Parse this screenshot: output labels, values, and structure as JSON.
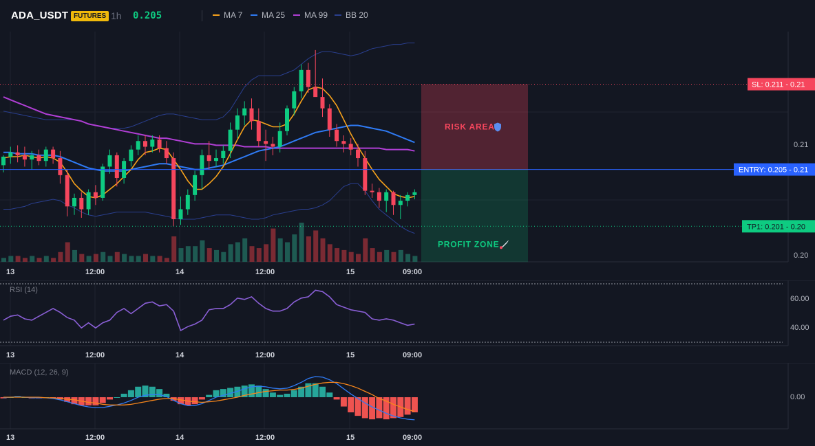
{
  "header": {
    "symbol": "ADA_USDT",
    "badge": "FUTURES",
    "timeframe": "1h",
    "price": "0.205",
    "legend": [
      {
        "label": "MA 7",
        "color": "#f7a21b"
      },
      {
        "label": "MA 25",
        "color": "#2f7bf5"
      },
      {
        "label": "MA 99",
        "color": "#b13fd6"
      },
      {
        "label": "BB 20",
        "color": "#2a3f8f"
      }
    ]
  },
  "x_labels": [
    "13",
    "12:00",
    "14",
    "12:00",
    "15",
    "09:00"
  ],
  "price_pane": {
    "y_ticks": [
      "0.21",
      "0.20"
    ],
    "sl_label": "SL: 0.211 - 0.21",
    "entry_label": "ENTRY: 0.205 - 0.21",
    "tp_label": "TP1: 0.201 - 0.20",
    "risk_label": "RISK AREA",
    "profit_label": "PROFIT ZONE",
    "colors": {
      "up": "#0ecb81",
      "down": "#f6465d",
      "sl": "#f6465d",
      "entry": "#2962ff",
      "tp": "#0ecb81"
    }
  },
  "rsi_pane": {
    "title": "RSI (14)",
    "y_ticks": [
      "60.00",
      "40.00"
    ],
    "color": "#8a5fd6"
  },
  "macd_pane": {
    "title": "MACD (12, 26, 9)",
    "y_ticks": [
      "0.00"
    ],
    "macd_color": "#2f7bf5",
    "signal_color": "#f7861b",
    "hist_pos": "#26a69a",
    "hist_neg": "#ef5350"
  },
  "chart_data": [
    {
      "type": "candlestick",
      "title": "ADA_USDT 1h",
      "y_range": [
        0.1985,
        0.2147
      ],
      "ohlc": [
        [
          0.2053,
          0.206,
          0.2048,
          0.2059
        ],
        [
          0.2059,
          0.2066,
          0.2054,
          0.2062
        ],
        [
          0.2062,
          0.2067,
          0.2055,
          0.206
        ],
        [
          0.206,
          0.2066,
          0.2052,
          0.2057
        ],
        [
          0.2057,
          0.2063,
          0.205,
          0.206
        ],
        [
          0.206,
          0.2064,
          0.2053,
          0.2056
        ],
        [
          0.2056,
          0.2066,
          0.2052,
          0.2064
        ],
        [
          0.2064,
          0.2066,
          0.2054,
          0.2058
        ],
        [
          0.2058,
          0.2063,
          0.204,
          0.2046
        ],
        [
          0.2046,
          0.205,
          0.2017,
          0.2024
        ],
        [
          0.2024,
          0.2033,
          0.2018,
          0.203
        ],
        [
          0.203,
          0.2034,
          0.2016,
          0.2022
        ],
        [
          0.2022,
          0.2036,
          0.2018,
          0.2034
        ],
        [
          0.2034,
          0.2039,
          0.2025,
          0.203
        ],
        [
          0.203,
          0.2054,
          0.2028,
          0.2052
        ],
        [
          0.2052,
          0.2064,
          0.2047,
          0.206
        ],
        [
          0.206,
          0.2062,
          0.2038,
          0.2044
        ],
        [
          0.2044,
          0.2058,
          0.204,
          0.2056
        ],
        [
          0.2056,
          0.2067,
          0.2052,
          0.2064
        ],
        [
          0.2064,
          0.2074,
          0.206,
          0.207
        ],
        [
          0.207,
          0.2074,
          0.206,
          0.2066
        ],
        [
          0.2066,
          0.2074,
          0.2062,
          0.2071
        ],
        [
          0.2071,
          0.2074,
          0.2062,
          0.2065
        ],
        [
          0.2065,
          0.207,
          0.2054,
          0.2058
        ],
        [
          0.2058,
          0.2062,
          0.201,
          0.2015
        ],
        [
          0.2015,
          0.2031,
          0.2011,
          0.2022
        ],
        [
          0.2022,
          0.2036,
          0.2018,
          0.2032
        ],
        [
          0.2032,
          0.2049,
          0.2028,
          0.2046
        ],
        [
          0.2046,
          0.2064,
          0.2036,
          0.206
        ],
        [
          0.206,
          0.207,
          0.205,
          0.2056
        ],
        [
          0.2056,
          0.2064,
          0.2052,
          0.2058
        ],
        [
          0.2058,
          0.2067,
          0.2054,
          0.2063
        ],
        [
          0.2063,
          0.2083,
          0.2058,
          0.2078
        ],
        [
          0.2078,
          0.2093,
          0.2072,
          0.2088
        ],
        [
          0.2088,
          0.2098,
          0.2081,
          0.2093
        ],
        [
          0.2093,
          0.21,
          0.2078,
          0.2084
        ],
        [
          0.2084,
          0.2093,
          0.2066,
          0.207
        ],
        [
          0.207,
          0.2078,
          0.2056,
          0.2068
        ],
        [
          0.2068,
          0.2073,
          0.206,
          0.2066
        ],
        [
          0.2066,
          0.2083,
          0.2062,
          0.2077
        ],
        [
          0.2077,
          0.2095,
          0.2074,
          0.2093
        ],
        [
          0.2093,
          0.2108,
          0.2088,
          0.2105
        ],
        [
          0.2105,
          0.2124,
          0.21,
          0.212
        ],
        [
          0.212,
          0.2125,
          0.2104,
          0.2108
        ],
        [
          0.2108,
          0.2134,
          0.2102,
          0.2101
        ],
        [
          0.2101,
          0.2114,
          0.2087,
          0.2093
        ],
        [
          0.2093,
          0.2096,
          0.2073,
          0.2078
        ],
        [
          0.2078,
          0.2082,
          0.2066,
          0.207
        ],
        [
          0.207,
          0.2074,
          0.2062,
          0.2068
        ],
        [
          0.2068,
          0.2072,
          0.206,
          0.2064
        ],
        [
          0.2064,
          0.2068,
          0.2052,
          0.2058
        ],
        [
          0.2058,
          0.2063,
          0.2032,
          0.2035
        ],
        [
          0.2035,
          0.204,
          0.203,
          0.2034
        ],
        [
          0.2034,
          0.2037,
          0.2023,
          0.2028
        ],
        [
          0.2028,
          0.2036,
          0.202,
          0.2034
        ],
        [
          0.2034,
          0.2035,
          0.2018,
          0.2025
        ],
        [
          0.2025,
          0.2032,
          0.2015,
          0.2028
        ],
        [
          0.2028,
          0.2034,
          0.2024,
          0.2032
        ],
        [
          0.2032,
          0.2036,
          0.2029,
          0.2034
        ]
      ],
      "volume": [
        2,
        3,
        3,
        2,
        3,
        2,
        3,
        2,
        5,
        10,
        6,
        4,
        3,
        4,
        5,
        3,
        5,
        4,
        3,
        3,
        4,
        3,
        3,
        2,
        13,
        7,
        8,
        8,
        11,
        7,
        6,
        5,
        9,
        10,
        12,
        8,
        7,
        9,
        17,
        12,
        10,
        14,
        20,
        13,
        16,
        12,
        9,
        7,
        6,
        5,
        4,
        12,
        7,
        5,
        6,
        5,
        6,
        4,
        3
      ],
      "ma7": [
        0.2058,
        0.2059,
        0.2059,
        0.206,
        0.2059,
        0.2058,
        0.2059,
        0.2058,
        0.2055,
        0.2048,
        0.204,
        0.2035,
        0.2031,
        0.203,
        0.2032,
        0.2036,
        0.204,
        0.2045,
        0.205,
        0.2057,
        0.2062,
        0.2063,
        0.2065,
        0.2064,
        0.2057,
        0.205,
        0.2042,
        0.2036,
        0.2036,
        0.204,
        0.2045,
        0.2052,
        0.2061,
        0.2071,
        0.208,
        0.2085,
        0.2084,
        0.2082,
        0.208,
        0.208,
        0.2082,
        0.2089,
        0.2098,
        0.2106,
        0.2108,
        0.2107,
        0.2102,
        0.2095,
        0.2085,
        0.2075,
        0.2066,
        0.2058,
        0.205,
        0.2043,
        0.2038,
        0.2033,
        0.2031,
        0.203,
        0.2031
      ],
      "ma25": [
        0.2062,
        0.2062,
        0.2061,
        0.2061,
        0.2061,
        0.206,
        0.206,
        0.206,
        0.2059,
        0.2057,
        0.2055,
        0.2053,
        0.2051,
        0.205,
        0.2049,
        0.2049,
        0.2049,
        0.2049,
        0.205,
        0.2051,
        0.2052,
        0.2053,
        0.2054,
        0.2054,
        0.2053,
        0.2052,
        0.2051,
        0.205,
        0.205,
        0.2051,
        0.2052,
        0.2053,
        0.2055,
        0.2057,
        0.2059,
        0.2061,
        0.2063,
        0.2064,
        0.2065,
        0.2066,
        0.2068,
        0.207,
        0.2072,
        0.2074,
        0.2076,
        0.2077,
        0.2078,
        0.2079,
        0.208,
        0.2081,
        0.2081,
        0.208,
        0.2079,
        0.2078,
        0.2077,
        0.2075,
        0.2073,
        0.2071,
        0.2069
      ],
      "ma99": [
        0.2101,
        0.2099,
        0.2097,
        0.2095,
        0.2093,
        0.2091,
        0.2089,
        0.2088,
        0.2087,
        0.2086,
        0.2085,
        0.2084,
        0.2082,
        0.2081,
        0.208,
        0.2079,
        0.2078,
        0.2077,
        0.2076,
        0.2075,
        0.2074,
        0.2073,
        0.2072,
        0.2072,
        0.2071,
        0.207,
        0.2069,
        0.2068,
        0.2068,
        0.2068,
        0.2067,
        0.2067,
        0.2067,
        0.2067,
        0.2066,
        0.2066,
        0.2066,
        0.2066,
        0.2065,
        0.2065,
        0.2065,
        0.2065,
        0.2065,
        0.2065,
        0.2065,
        0.2065,
        0.2065,
        0.2065,
        0.2065,
        0.2065,
        0.2065,
        0.2065,
        0.2065,
        0.2065,
        0.2064,
        0.2064,
        0.2064,
        0.2064,
        0.2063
      ],
      "bb_upper": [
        0.2091,
        0.209,
        0.2089,
        0.2088,
        0.2087,
        0.2086,
        0.2085,
        0.2085,
        0.2085,
        0.2085,
        0.2085,
        0.2084,
        0.2082,
        0.2081,
        0.208,
        0.2079,
        0.2079,
        0.2079,
        0.208,
        0.2082,
        0.2084,
        0.2086,
        0.2088,
        0.2089,
        0.2089,
        0.2088,
        0.2087,
        0.2086,
        0.2085,
        0.2085,
        0.2085,
        0.2087,
        0.2092,
        0.21,
        0.2108,
        0.2113,
        0.2116,
        0.2116,
        0.2116,
        0.2116,
        0.2118,
        0.212,
        0.2124,
        0.2128,
        0.2131,
        0.2133,
        0.2133,
        0.2132,
        0.2131,
        0.213,
        0.2131,
        0.2133,
        0.2135,
        0.2136,
        0.2137,
        0.2138,
        0.2138,
        0.2139,
        0.2139
      ],
      "bb_lower": [
        0.2022,
        0.2022,
        0.2023,
        0.2024,
        0.2026,
        0.2027,
        0.2028,
        0.2029,
        0.2028,
        0.2025,
        0.2023,
        0.202,
        0.2018,
        0.2017,
        0.2018,
        0.2019,
        0.202,
        0.202,
        0.202,
        0.202,
        0.202,
        0.2019,
        0.2018,
        0.2017,
        0.2016,
        0.2015,
        0.2015,
        0.2015,
        0.2016,
        0.2017,
        0.2018,
        0.2018,
        0.2018,
        0.2017,
        0.2016,
        0.2015,
        0.2015,
        0.2016,
        0.2018,
        0.2019,
        0.202,
        0.2021,
        0.2022,
        0.2022,
        0.2023,
        0.2025,
        0.2028,
        0.2033,
        0.2038,
        0.204,
        0.204,
        0.2035,
        0.2028,
        0.2022,
        0.2018,
        0.2014,
        0.201,
        0.2007,
        0.2005
      ],
      "levels": {
        "sl": 0.211,
        "entry": 0.205,
        "tp1": 0.201
      }
    },
    {
      "type": "line",
      "title": "RSI (14)",
      "y_range": [
        27,
        72
      ],
      "values": [
        44,
        47,
        48,
        45,
        44,
        47,
        50,
        53,
        50,
        46,
        44,
        38,
        42,
        38,
        42,
        44,
        50,
        53,
        49,
        53,
        57,
        58,
        55,
        56,
        51,
        36,
        39,
        41,
        44,
        52,
        53,
        53,
        56,
        61,
        60,
        62,
        57,
        53,
        51,
        51,
        53,
        58,
        61,
        62,
        67,
        66,
        62,
        56,
        54,
        52,
        51,
        50,
        45,
        44,
        45,
        44,
        42,
        40,
        41
      ],
      "y_ticks": [
        60,
        40
      ]
    },
    {
      "type": "line",
      "title": "MACD (12, 26, 9)",
      "macd": [
        -0.0001,
        0,
        0.0001,
        0,
        -0.0001,
        -0.0001,
        -0.0001,
        -0.0002,
        -0.0004,
        -0.0007,
        -0.001,
        -0.0013,
        -0.0015,
        -0.0016,
        -0.0016,
        -0.0014,
        -0.0012,
        -0.0009,
        -0.0005,
        0,
        0.0003,
        0.0004,
        0.0004,
        0.0001,
        -0.0005,
        -0.001,
        -0.0013,
        -0.0013,
        -0.001,
        -0.0005,
        0,
        0.0003,
        0.0006,
        0.0009,
        0.0013,
        0.0016,
        0.0017,
        0.0016,
        0.0014,
        0.0013,
        0.0014,
        0.0018,
        0.0023,
        0.0029,
        0.0032,
        0.0031,
        0.0027,
        0.0021,
        0.0013,
        0.0005,
        -0.0002,
        -0.0009,
        -0.0015,
        -0.002,
        -0.0025,
        -0.0029,
        -0.0032,
        -0.0034,
        -0.0035
      ],
      "signal": [
        0,
        0,
        0,
        0,
        0,
        0,
        -0.0001,
        -0.0001,
        -0.0002,
        -0.0003,
        -0.0004,
        -0.0006,
        -0.0008,
        -0.0009,
        -0.0011,
        -0.0012,
        -0.0012,
        -0.0012,
        -0.0011,
        -0.0009,
        -0.0007,
        -0.0005,
        -0.0003,
        -0.0002,
        -0.0002,
        -0.0004,
        -0.0006,
        -0.0007,
        -0.0008,
        -0.0007,
        -0.0006,
        -0.0004,
        -0.0002,
        0,
        0.0003,
        0.0005,
        0.0007,
        0.0009,
        0.001,
        0.0011,
        0.0011,
        0.0012,
        0.0014,
        0.0017,
        0.002,
        0.0022,
        0.0023,
        0.0023,
        0.0021,
        0.0018,
        0.0014,
        0.0009,
        0.0004,
        -0.0002,
        -0.0006,
        -0.0011,
        -0.0015,
        -0.0019,
        -0.0022
      ],
      "y_range": [
        -0.0045,
        0.004
      ],
      "y_ticks": [
        0
      ]
    }
  ]
}
